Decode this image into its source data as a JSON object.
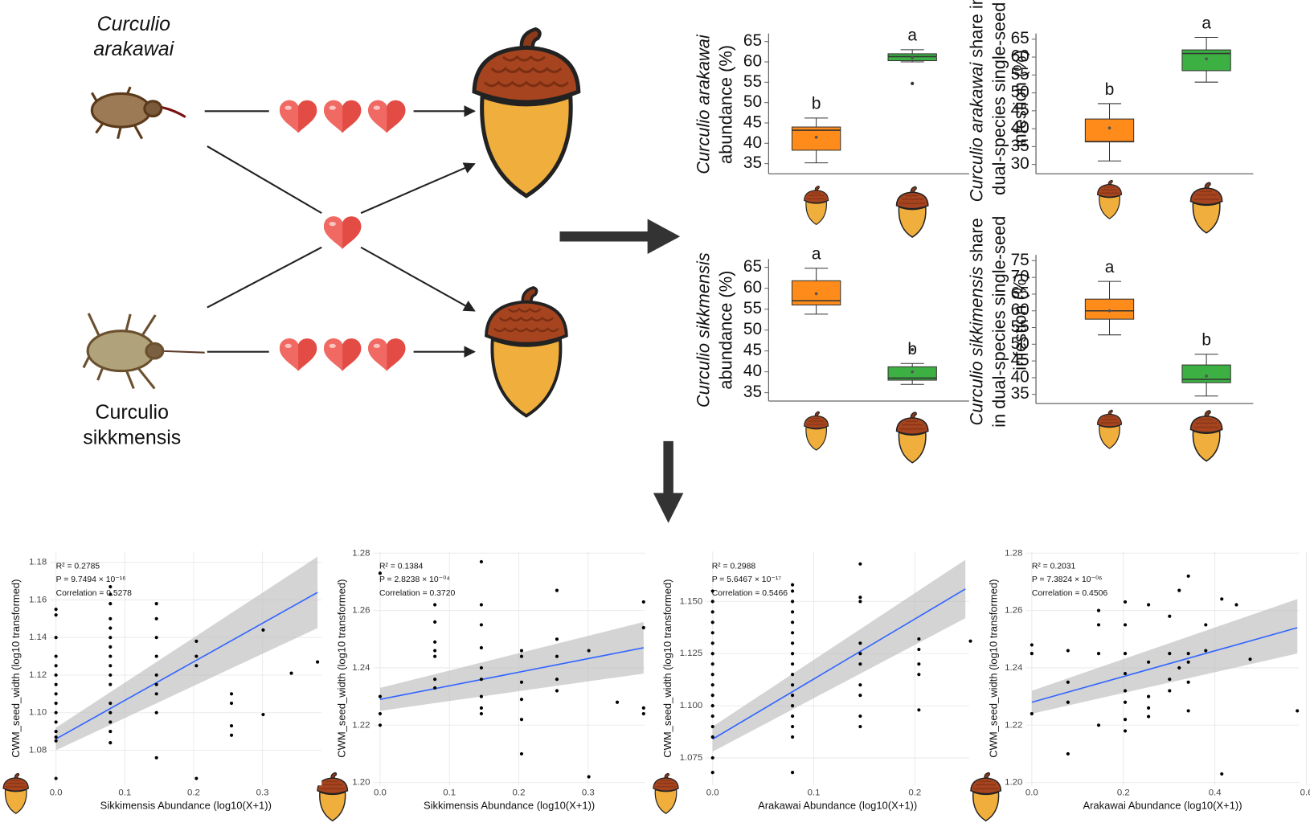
{
  "illustration": {
    "top_insect": [
      "Curculio",
      "arakawai"
    ],
    "bottom_insect": [
      "Curculio",
      "sikkmensis"
    ]
  },
  "chart_data": [
    {
      "type": "box",
      "categories": [
        null,
        null
      ],
      "ylabel": [
        [
          {
            "text": "Curculio arakawai",
            "italic": true
          }
        ],
        [
          {
            "text": "abundance (%)"
          }
        ]
      ],
      "ylim": [
        32.5,
        67
      ],
      "yticks": [
        35,
        40,
        45,
        50,
        55,
        60,
        65
      ],
      "boxes": [
        {
          "color": "#ff8c1a",
          "min": 35.2,
          "q1": 38.3,
          "median": 43.2,
          "q3": 44,
          "max": 46.2,
          "mean": 41.5,
          "outliers": [],
          "letter": "b"
        },
        {
          "color": "#3cb043",
          "min": 60,
          "q1": 60.3,
          "median": 61.3,
          "q3": 62,
          "max": 63,
          "mean": 61,
          "outliers": [
            54.7
          ],
          "letter": "a"
        }
      ]
    },
    {
      "type": "box",
      "categories": [
        null,
        null
      ],
      "ylabel": [
        [
          {
            "text": "Curculio arakawai",
            "italic": true
          },
          {
            "text": " share in"
          }
        ],
        [
          {
            "text": "dual-species single-seed"
          }
        ],
        [
          {
            "text": "infestion (%)"
          }
        ]
      ],
      "ylim": [
        27.4,
        66.6
      ],
      "yticks": [
        30,
        35,
        40,
        45,
        50,
        55,
        60,
        65
      ],
      "boxes": [
        {
          "color": "#ff8c1a",
          "min": 31,
          "q1": 36.3,
          "median": 36.4,
          "q3": 42.7,
          "max": 47,
          "mean": 40.2,
          "outliers": [],
          "letter": "b"
        },
        {
          "color": "#3cb043",
          "min": 53,
          "q1": 56.2,
          "median": 61,
          "q3": 62,
          "max": 65.5,
          "mean": 59.5,
          "outliers": [],
          "letter": "a"
        }
      ]
    },
    {
      "type": "box",
      "categories": [
        null,
        null
      ],
      "ylabel": [
        [
          {
            "text": "Curculio sikkmensis",
            "italic": true
          }
        ],
        [
          {
            "text": "abundance (%)"
          }
        ]
      ],
      "ylim": [
        33,
        67
      ],
      "yticks": [
        35,
        40,
        45,
        50,
        55,
        60,
        65
      ],
      "boxes": [
        {
          "color": "#ff8c1a",
          "min": 53.8,
          "q1": 56,
          "median": 57,
          "q3": 61.8,
          "max": 64.8,
          "mean": 58.7,
          "outliers": [],
          "letter": "a"
        },
        {
          "color": "#3cb043",
          "min": 37,
          "q1": 38,
          "median": 38.5,
          "q3": 41.2,
          "max": 42,
          "mean": 40,
          "outliers": [
            45.3
          ],
          "letter": "b"
        }
      ]
    },
    {
      "type": "box",
      "categories": [
        null,
        null
      ],
      "ylabel": [
        [
          {
            "text": "Curculio sikkimensis",
            "italic": true
          },
          {
            "text": " share"
          }
        ],
        [
          {
            "text": "in dual-species single-seed"
          }
        ],
        [
          {
            "text": "infestion (%)"
          }
        ]
      ],
      "ylim": [
        32.25,
        76.75
      ],
      "yticks": [
        35,
        40,
        45,
        50,
        55,
        60,
        65,
        70,
        75
      ],
      "boxes": [
        {
          "color": "#ff8c1a",
          "min": 52.8,
          "q1": 57.5,
          "median": 60,
          "q3": 63.5,
          "max": 68.8,
          "mean": 60,
          "outliers": [],
          "letter": "a"
        },
        {
          "color": "#3cb043",
          "min": 34.5,
          "q1": 38.5,
          "median": 39.5,
          "q3": 43.8,
          "max": 47,
          "mean": 40.5,
          "outliers": [],
          "letter": "b"
        }
      ]
    },
    {
      "type": "scatter",
      "xlabel": "Sikkimensis Abundance (log10(X+1))",
      "ylabel": "CWM_seed_width (log10 transformed)",
      "annotations": [
        "R² = 0.2785",
        "P = 9.7494 × 10⁻¹⁶",
        "Correlation = 0.5278"
      ],
      "xlim": [
        -0.0085,
        0.386
      ],
      "xticks": [
        {
          "value": 0,
          "label": "0.0"
        },
        0.1,
        0.2,
        0.3
      ],
      "ylim": [
        1.0613,
        1.1858
      ],
      "yticks": [
        1.08,
        {
          "value": 1.1,
          "label": "1.10"
        },
        1.12,
        1.14,
        1.16,
        1.18
      ],
      "grid": true,
      "color": "#000000",
      "x": [
        0,
        0,
        0,
        0,
        0,
        0,
        0,
        0,
        0,
        0,
        0,
        0,
        0,
        0,
        0,
        0.079,
        0.079,
        0.079,
        0.079,
        0.079,
        0.079,
        0.079,
        0.079,
        0.079,
        0.079,
        0.079,
        0.079,
        0.079,
        0.079,
        0.079,
        0.079,
        0.146,
        0.146,
        0.146,
        0.146,
        0.146,
        0.146,
        0.146,
        0.146,
        0.146,
        0.204,
        0.204,
        0.204,
        0.204,
        0.255,
        0.255,
        0.255,
        0.255,
        0.301,
        0.301,
        0.342,
        0.38
      ],
      "values": [
        1.155,
        1.152,
        1.14,
        1.13,
        1.125,
        1.12,
        1.115,
        1.11,
        1.105,
        1.1,
        1.095,
        1.09,
        1.087,
        1.085,
        1.065,
        1.167,
        1.163,
        1.158,
        1.15,
        1.145,
        1.14,
        1.135,
        1.13,
        1.125,
        1.12,
        1.115,
        1.105,
        1.1,
        1.095,
        1.09,
        1.084,
        1.158,
        1.15,
        1.14,
        1.13,
        1.12,
        1.115,
        1.11,
        1.1,
        1.076,
        1.138,
        1.13,
        1.125,
        1.065,
        1.11,
        1.105,
        1.093,
        1.088,
        1.144,
        1.099,
        1.121,
        1.127
      ],
      "fit": {
        "color": "#3366ff",
        "x": [
          0,
          0.38
        ],
        "values": [
          1.086,
          1.164
        ],
        "lower": [
          1.08,
          1.145
        ],
        "upper": [
          1.092,
          1.183
        ]
      }
    },
    {
      "type": "scatter",
      "xlabel": "Sikkimensis Abundance (log10(X+1))",
      "ylabel": "CWM_seed_width (log10 transformed)",
      "annotations": [
        "R² = 0.1384",
        "P = 2.8238 × 10⁻⁰⁴",
        "Correlation = 0.3720"
      ],
      "xlim": [
        -0.0096,
        0.382
      ],
      "xticks": [
        {
          "value": 0,
          "label": "0.0"
        },
        0.1,
        0.2,
        0.3
      ],
      "ylim": [
        1.199,
        1.2806
      ],
      "yticks": [
        {
          "value": 1.2,
          "label": "1.20"
        },
        1.22,
        1.24,
        1.26,
        1.28
      ],
      "grid": true,
      "color": "#000000",
      "x": [
        0,
        0,
        0,
        0,
        0.079,
        0.079,
        0.079,
        0.079,
        0.079,
        0.079,
        0.079,
        0.146,
        0.146,
        0.146,
        0.146,
        0.146,
        0.146,
        0.146,
        0.146,
        0.146,
        0.204,
        0.204,
        0.204,
        0.204,
        0.204,
        0.204,
        0.255,
        0.255,
        0.255,
        0.255,
        0.255,
        0.301,
        0.301,
        0.342,
        0.38,
        0.38,
        0.38,
        0.38
      ],
      "values": [
        1.273,
        1.23,
        1.224,
        1.22,
        1.262,
        1.256,
        1.249,
        1.246,
        1.244,
        1.236,
        1.233,
        1.277,
        1.262,
        1.255,
        1.247,
        1.24,
        1.236,
        1.23,
        1.226,
        1.224,
        1.246,
        1.244,
        1.235,
        1.229,
        1.222,
        1.21,
        1.267,
        1.25,
        1.244,
        1.236,
        1.232,
        1.246,
        1.202,
        1.228,
        1.263,
        1.254,
        1.226,
        1.224
      ],
      "fit": {
        "color": "#3366ff",
        "x": [
          0,
          0.38
        ],
        "values": [
          1.229,
          1.247
        ],
        "lower": [
          1.225,
          1.238
        ],
        "upper": [
          1.233,
          1.256
        ]
      }
    },
    {
      "type": "scatter",
      "xlabel": "Arakawai Abundance (log10(X+1))",
      "ylabel": "CWM_seed_width (log10 transformed)",
      "annotations": [
        "R² = 0.2988",
        "P = 5.6467 × 10⁻¹⁷",
        "Correlation = 0.5466"
      ],
      "xlim": [
        -0.0066,
        0.2537
      ],
      "xticks": [
        {
          "value": 0,
          "label": "0.0"
        },
        0.1,
        0.2
      ],
      "ylim": [
        1.0618,
        1.174
      ],
      "yticks": [
        1.075,
        {
          "value": 1.1,
          "label": "1.100"
        },
        1.125,
        {
          "value": 1.15,
          "label": "1.150"
        }
      ],
      "grid": true,
      "color": "#000000",
      "x": [
        0,
        0,
        0,
        0,
        0,
        0,
        0,
        0,
        0,
        0,
        0,
        0,
        0,
        0,
        0,
        0,
        0,
        0.079,
        0.079,
        0.079,
        0.079,
        0.079,
        0.079,
        0.079,
        0.079,
        0.079,
        0.079,
        0.079,
        0.079,
        0.079,
        0.079,
        0.079,
        0.079,
        0.079,
        0.146,
        0.146,
        0.146,
        0.146,
        0.146,
        0.146,
        0.146,
        0.146,
        0.146,
        0.146,
        0.204,
        0.204,
        0.204,
        0.204,
        0.204,
        0.255
      ],
      "values": [
        1.155,
        1.15,
        1.145,
        1.14,
        1.135,
        1.13,
        1.125,
        1.12,
        1.115,
        1.11,
        1.105,
        1.1,
        1.095,
        1.09,
        1.085,
        1.075,
        1.068,
        1.158,
        1.155,
        1.15,
        1.145,
        1.14,
        1.135,
        1.13,
        1.125,
        1.12,
        1.115,
        1.11,
        1.105,
        1.1,
        1.095,
        1.09,
        1.085,
        1.068,
        1.168,
        1.152,
        1.15,
        1.13,
        1.125,
        1.12,
        1.11,
        1.105,
        1.095,
        1.09,
        1.132,
        1.127,
        1.12,
        1.115,
        1.098,
        1.131
      ],
      "fit": {
        "color": "#3366ff",
        "x": [
          0,
          0.25
        ],
        "values": [
          1.084,
          1.156
        ],
        "lower": [
          1.078,
          1.142
        ],
        "upper": [
          1.09,
          1.17
        ]
      }
    },
    {
      "type": "scatter",
      "xlabel": "Arakawai Abundance (log10(X+1))",
      "ylabel": "CWM_seed_width (log10 transformed)",
      "annotations": [
        "R² = 0.2031",
        "P = 7.3824 × 10⁻⁰⁶",
        "Correlation = 0.4506"
      ],
      "xlim": [
        -0.0128,
        0.584
      ],
      "xticks": [
        {
          "value": 0,
          "label": "0.0"
        },
        0.2,
        0.4,
        0.6
      ],
      "ylim": [
        1.199,
        1.2806
      ],
      "yticks": [
        {
          "value": 1.2,
          "label": "1.20"
        },
        1.22,
        1.24,
        1.26,
        1.28
      ],
      "grid": true,
      "color": "#000000",
      "x": [
        0,
        0,
        0,
        0.079,
        0.079,
        0.079,
        0.079,
        0.146,
        0.146,
        0.146,
        0.146,
        0.204,
        0.204,
        0.204,
        0.204,
        0.204,
        0.204,
        0.204,
        0.204,
        0.255,
        0.255,
        0.255,
        0.255,
        0.255,
        0.301,
        0.301,
        0.301,
        0.301,
        0.322,
        0.322,
        0.342,
        0.342,
        0.342,
        0.342,
        0.342,
        0.38,
        0.38,
        0.415,
        0.415,
        0.447,
        0.477,
        0.58
      ],
      "values": [
        1.248,
        1.245,
        1.224,
        1.235,
        1.228,
        1.21,
        1.246,
        1.26,
        1.255,
        1.245,
        1.22,
        1.263,
        1.255,
        1.245,
        1.238,
        1.232,
        1.228,
        1.222,
        1.218,
        1.262,
        1.242,
        1.23,
        1.226,
        1.223,
        1.258,
        1.245,
        1.236,
        1.232,
        1.267,
        1.24,
        1.272,
        1.245,
        1.242,
        1.235,
        1.225,
        1.255,
        1.246,
        1.264,
        1.203,
        1.262,
        1.243,
        1.225
      ],
      "fit": {
        "color": "#3366ff",
        "x": [
          0,
          0.58
        ],
        "values": [
          1.228,
          1.254
        ],
        "lower": [
          1.224,
          1.245
        ],
        "upper": [
          1.232,
          1.264
        ]
      }
    }
  ]
}
